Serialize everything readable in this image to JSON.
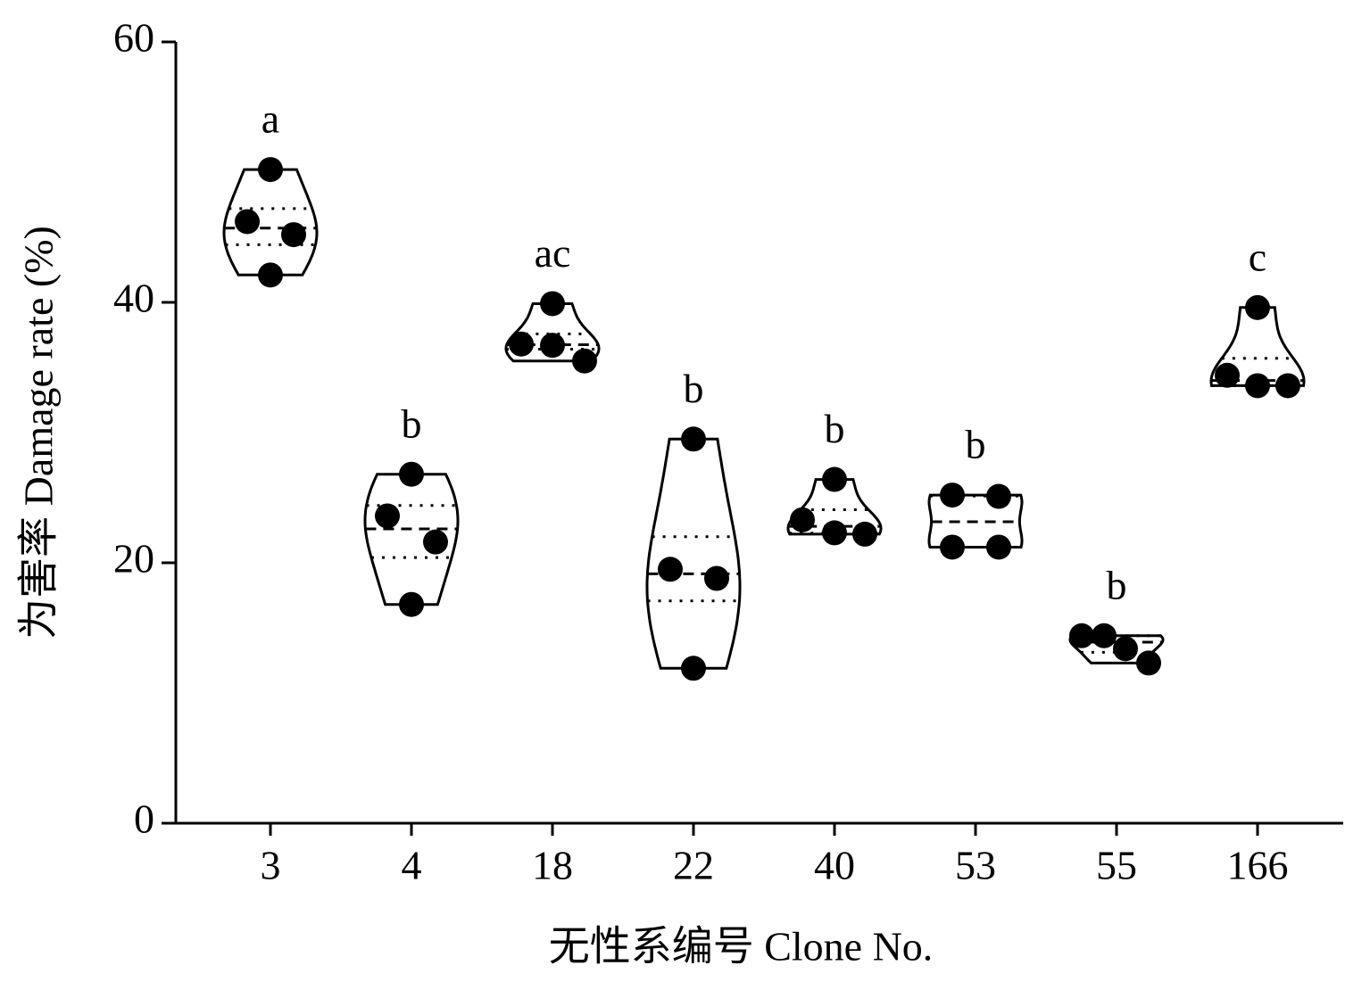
{
  "chart_data": {
    "type": "violin",
    "xlabel": "无性系编号  Clone No.",
    "ylabel": "为害率  Damage rate (%)",
    "categories": [
      "3",
      "4",
      "18",
      "22",
      "40",
      "53",
      "55",
      "166"
    ],
    "values": [
      [
        50.2,
        46.2,
        45.2,
        42.1
      ],
      [
        26.8,
        23.6,
        21.6,
        16.8
      ],
      [
        39.9,
        36.8,
        36.7,
        35.5
      ],
      [
        29.5,
        19.5,
        18.8,
        11.9
      ],
      [
        26.4,
        23.3,
        22.3,
        22.2
      ],
      [
        25.2,
        25.1,
        21.2,
        21.2
      ],
      [
        14.4,
        14.4,
        13.4,
        12.3
      ],
      [
        39.6,
        34.4,
        33.6,
        33.6
      ]
    ],
    "annotations": [
      "a",
      "b",
      "ac",
      "b",
      "b",
      "b",
      "b",
      "c"
    ],
    "color": "#000000",
    "ylim": [
      0,
      60
    ],
    "yticks": [
      0,
      20,
      40,
      60
    ],
    "grid": false
  }
}
